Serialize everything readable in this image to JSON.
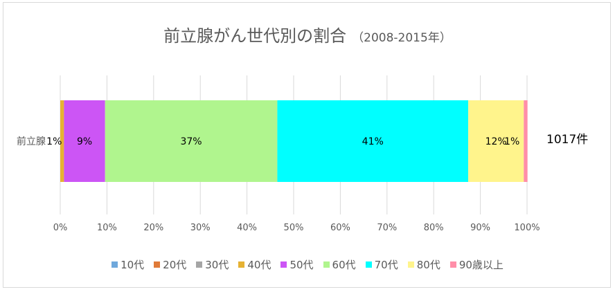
{
  "chart_data": {
    "type": "bar",
    "orientation": "horizontal-stacked-100",
    "title": "前立腺がん世代別の割合",
    "subtitle": "（2008-2015年）",
    "categories": [
      "前立腺"
    ],
    "series": [
      {
        "name": "10代",
        "color": "#6fa8dc",
        "values": [
          0
        ],
        "label": ""
      },
      {
        "name": "20代",
        "color": "#e07b39",
        "values": [
          0
        ],
        "label": ""
      },
      {
        "name": "30代",
        "color": "#a5a5a5",
        "values": [
          0
        ],
        "label": ""
      },
      {
        "name": "40代",
        "color": "#e6b233",
        "values": [
          0.8
        ],
        "label": "1%"
      },
      {
        "name": "50代",
        "color": "#cc55f5",
        "values": [
          8.8
        ],
        "label": "9%"
      },
      {
        "name": "60代",
        "color": "#b0f58e",
        "values": [
          36.9
        ],
        "label": "37%"
      },
      {
        "name": "70代",
        "color": "#00ffff",
        "values": [
          40.9
        ],
        "label": "41%"
      },
      {
        "name": "80代",
        "color": "#fff48c",
        "values": [
          11.9
        ],
        "label": "12%"
      },
      {
        "name": "90歳以上",
        "color": "#ff8ea8",
        "values": [
          0.8
        ],
        "label": "1%"
      }
    ],
    "xlim": [
      0,
      100
    ],
    "xticks": [
      "0%",
      "10%",
      "20%",
      "30%",
      "40%",
      "50%",
      "60%",
      "70%",
      "80%",
      "90%",
      "100%"
    ],
    "grid": true,
    "legend_position": "bottom",
    "annotation": "1017件"
  }
}
